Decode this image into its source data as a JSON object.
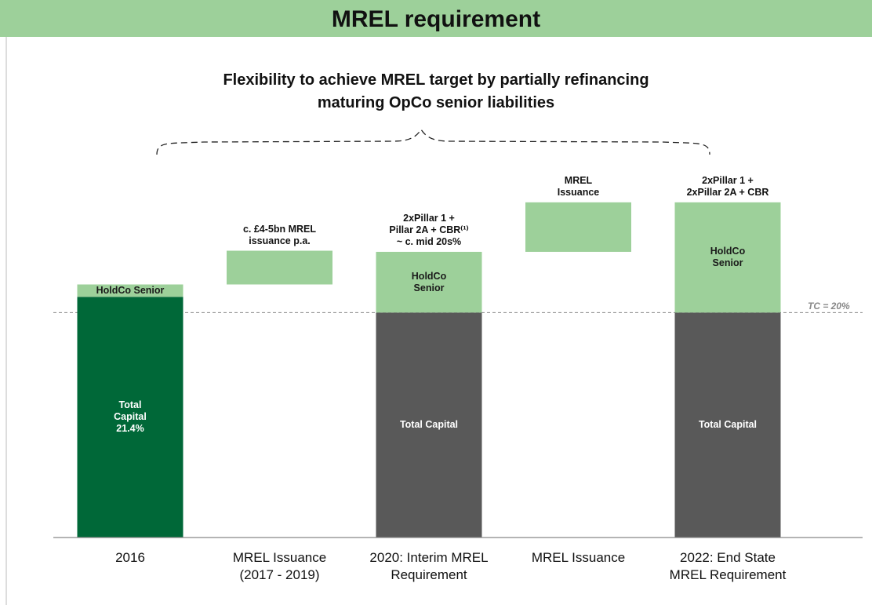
{
  "chart_data": {
    "type": "waterfall",
    "title": "MREL requirement",
    "subtitle": [
      "Flexibility to achieve MREL target by partially refinancing",
      "maturing OpCo senior liabilities"
    ],
    "categories": [
      [
        "2016"
      ],
      [
        "MREL Issuance",
        "(2017 - 2019)"
      ],
      [
        "2020: Interim MREL",
        "Requirement"
      ],
      [
        "MREL Issuance"
      ],
      [
        "2022: End State",
        "MREL Requirement"
      ]
    ],
    "ylim": [
      0,
      30
    ],
    "series": [
      {
        "name": "Total Capital",
        "colors": [
          "#006838",
          null,
          "#595959",
          null,
          "#595959"
        ],
        "values": [
          21.4,
          null,
          20,
          null,
          20
        ],
        "value_labels": [
          "21.4%",
          null,
          null,
          null,
          null
        ]
      },
      {
        "name": "HoldCo Senior",
        "color": "#9dd09a",
        "values": [
          1.1,
          null,
          5.4,
          null,
          9.8
        ]
      },
      {
        "color": "#9dd09a",
        "float": true,
        "values": [
          null,
          3.0,
          null,
          4.4,
          null
        ]
      }
    ],
    "annotations": [
      null,
      [
        "c. £4-5bn MREL",
        "issuance p.a."
      ],
      [
        "2xPillar 1 +",
        "Pillar 2A + CBR⁽¹⁾",
        "~ c. mid 20s%"
      ],
      [
        "MREL",
        "Issuance"
      ],
      [
        "2xPillar 1 +",
        "2xPillar 2A + CBR"
      ]
    ],
    "reference_line": {
      "value": 20,
      "label": "TC = 20%"
    }
  }
}
